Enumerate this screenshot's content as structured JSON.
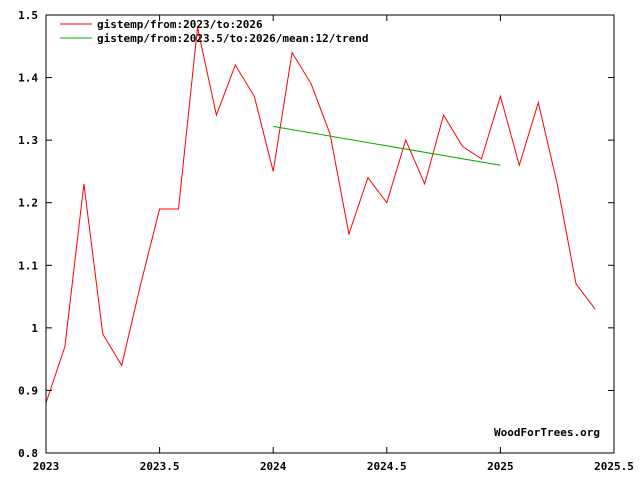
{
  "chart_data": {
    "type": "line",
    "xlim": [
      2023,
      2025.5
    ],
    "ylim": [
      0.8,
      1.5
    ],
    "x_ticks": [
      {
        "value": 2023,
        "label": "2023"
      },
      {
        "value": 2023.5,
        "label": "2023.5"
      },
      {
        "value": 2024,
        "label": "2024"
      },
      {
        "value": 2024.5,
        "label": "2024.5"
      },
      {
        "value": 2025,
        "label": "2025"
      },
      {
        "value": 2025.5,
        "label": "2025.5"
      }
    ],
    "y_ticks": [
      {
        "value": 0.8,
        "label": "0.8"
      },
      {
        "value": 0.9,
        "label": "0.9"
      },
      {
        "value": 1.0,
        "label": "1"
      },
      {
        "value": 1.1,
        "label": "1.1"
      },
      {
        "value": 1.2,
        "label": "1.2"
      },
      {
        "value": 1.3,
        "label": "1.3"
      },
      {
        "value": 1.4,
        "label": "1.4"
      },
      {
        "value": 1.5,
        "label": "1.5"
      }
    ],
    "grid": false,
    "legend_position": "top-left",
    "series": [
      {
        "name": "gistemp/from:2023/to:2026",
        "color": "#ff0000",
        "x": [
          2023.0,
          2023.083,
          2023.167,
          2023.25,
          2023.333,
          2023.417,
          2023.5,
          2023.583,
          2023.667,
          2023.75,
          2023.833,
          2023.917,
          2024.0,
          2024.083,
          2024.167,
          2024.25,
          2024.333,
          2024.417,
          2024.5,
          2024.583,
          2024.667,
          2024.75,
          2024.833,
          2024.917,
          2025.0,
          2025.083,
          2025.167,
          2025.25,
          2025.333,
          2025.417
        ],
        "y": [
          0.88,
          0.97,
          1.23,
          0.99,
          0.94,
          1.07,
          1.19,
          1.19,
          1.48,
          1.34,
          1.42,
          1.37,
          1.25,
          1.44,
          1.39,
          1.31,
          1.15,
          1.24,
          1.2,
          1.3,
          1.23,
          1.34,
          1.29,
          1.27,
          1.37,
          1.26,
          1.36,
          1.23,
          1.07,
          1.03
        ]
      },
      {
        "name": "gistemp/from:2023.5/to:2026/mean:12/trend",
        "color": "#00aa00",
        "x": [
          2024.0,
          2025.0
        ],
        "y": [
          1.322,
          1.26
        ]
      }
    ],
    "watermark": "WoodForTrees.org"
  }
}
